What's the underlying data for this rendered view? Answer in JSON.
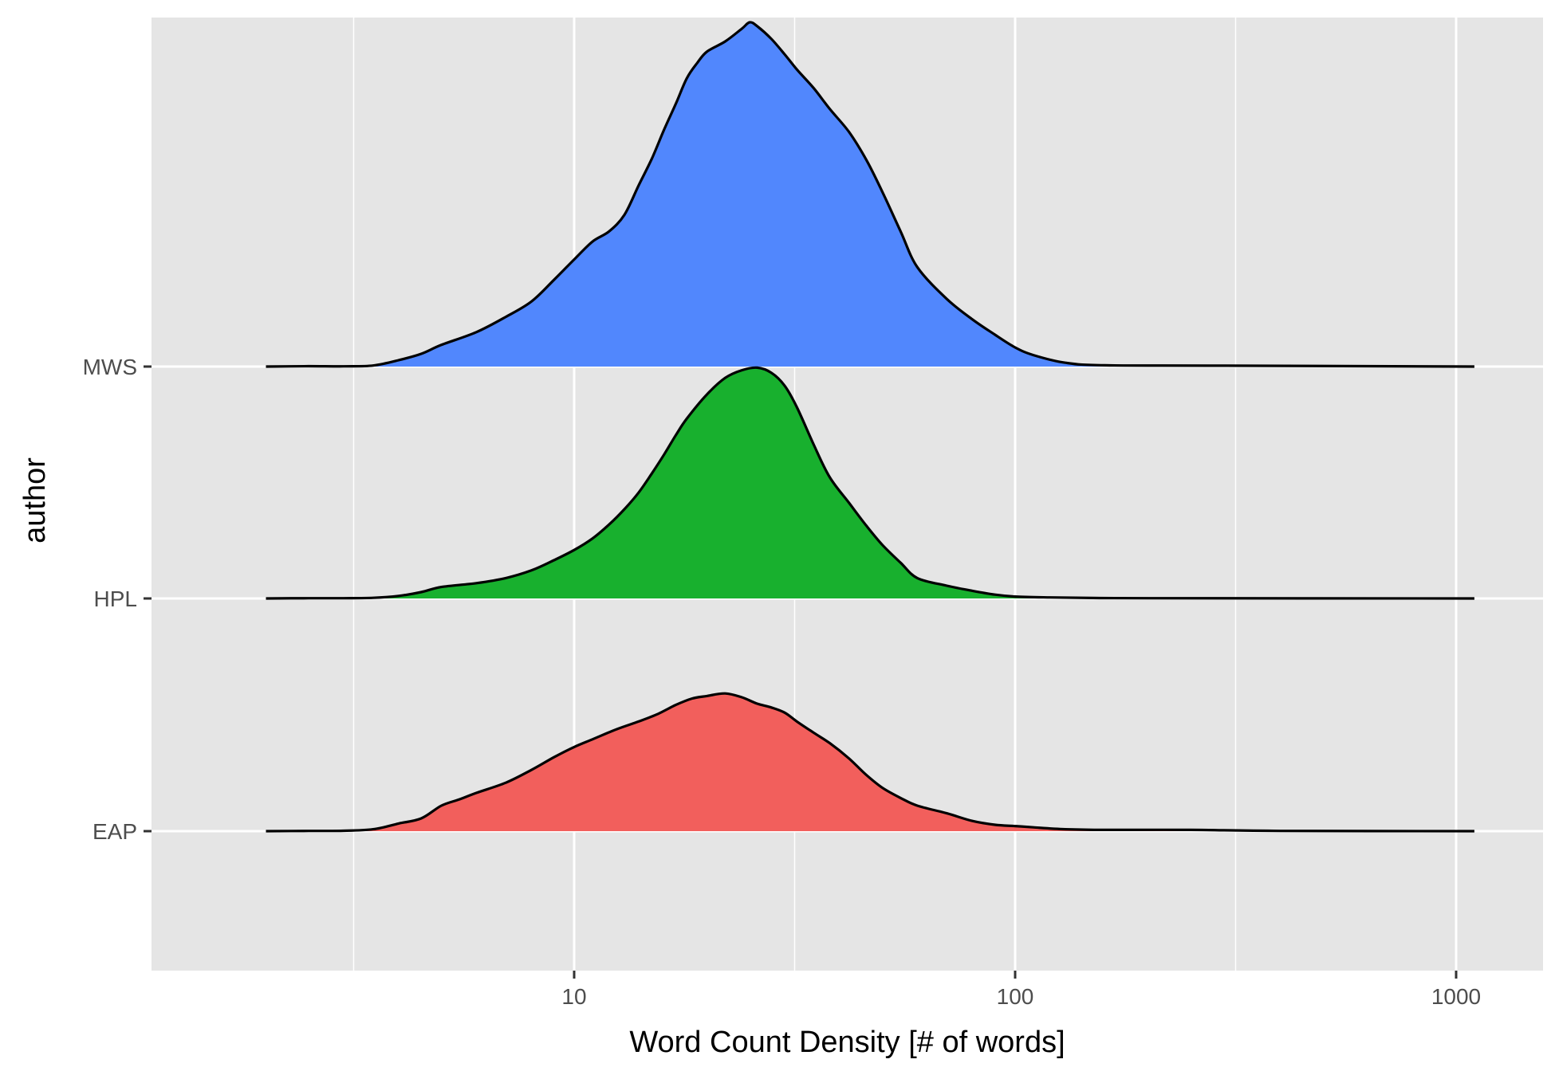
{
  "chart_data": {
    "type": "ridgeline",
    "title": "",
    "xlabel": "Word Count Density [# of words]",
    "ylabel": "author",
    "x_scale": "log10",
    "xlim": [
      1.6,
      1500
    ],
    "x_ticks": [
      10,
      100,
      1000
    ],
    "x_tick_labels": [
      "10",
      "100",
      "1000"
    ],
    "x_minor_gridlines": [
      3.162,
      31.62,
      316.2
    ],
    "categories": [
      "EAP",
      "HPL",
      "MWS"
    ],
    "grid": true,
    "legend": "none",
    "series": [
      {
        "name": "EAP",
        "color": "#F25F5C",
        "points": [
          [
            2,
            0
          ],
          [
            2.5,
            0.002
          ],
          [
            3,
            0.003
          ],
          [
            3.5,
            0.015
          ],
          [
            4,
            0.06
          ],
          [
            4.5,
            0.1
          ],
          [
            5,
            0.2
          ],
          [
            5.5,
            0.25
          ],
          [
            6,
            0.3
          ],
          [
            7,
            0.38
          ],
          [
            8,
            0.48
          ],
          [
            9,
            0.58
          ],
          [
            10,
            0.66
          ],
          [
            11,
            0.72
          ],
          [
            12.5,
            0.8
          ],
          [
            14,
            0.86
          ],
          [
            15.5,
            0.92
          ],
          [
            17,
            0.99
          ],
          [
            18.5,
            1.04
          ],
          [
            20,
            1.06
          ],
          [
            22,
            1.08
          ],
          [
            24,
            1.05
          ],
          [
            26,
            1.0
          ],
          [
            28,
            0.97
          ],
          [
            30,
            0.93
          ],
          [
            32,
            0.86
          ],
          [
            35,
            0.77
          ],
          [
            38,
            0.69
          ],
          [
            42,
            0.57
          ],
          [
            46,
            0.44
          ],
          [
            50,
            0.34
          ],
          [
            55,
            0.26
          ],
          [
            60,
            0.2
          ],
          [
            70,
            0.14
          ],
          [
            80,
            0.08
          ],
          [
            90,
            0.05
          ],
          [
            100,
            0.04
          ],
          [
            110,
            0.03
          ],
          [
            130,
            0.015
          ],
          [
            160,
            0.01
          ],
          [
            250,
            0.01
          ],
          [
            400,
            0.002
          ],
          [
            1100,
            0
          ]
        ]
      },
      {
        "name": "HPL",
        "color": "#18B02E",
        "points": [
          [
            2,
            0
          ],
          [
            2.5,
            0.002
          ],
          [
            3,
            0.002
          ],
          [
            3.5,
            0.005
          ],
          [
            4,
            0.02
          ],
          [
            4.5,
            0.05
          ],
          [
            5,
            0.09
          ],
          [
            6,
            0.12
          ],
          [
            7,
            0.16
          ],
          [
            8,
            0.22
          ],
          [
            9,
            0.3
          ],
          [
            10,
            0.38
          ],
          [
            11,
            0.47
          ],
          [
            12,
            0.58
          ],
          [
            13,
            0.7
          ],
          [
            14,
            0.83
          ],
          [
            15,
            0.98
          ],
          [
            16,
            1.13
          ],
          [
            17,
            1.28
          ],
          [
            18,
            1.41
          ],
          [
            20,
            1.6
          ],
          [
            22,
            1.73
          ],
          [
            24,
            1.79
          ],
          [
            26,
            1.81
          ],
          [
            28,
            1.77
          ],
          [
            30,
            1.67
          ],
          [
            32,
            1.5
          ],
          [
            35,
            1.2
          ],
          [
            38,
            0.95
          ],
          [
            42,
            0.75
          ],
          [
            46,
            0.57
          ],
          [
            50,
            0.42
          ],
          [
            55,
            0.28
          ],
          [
            60,
            0.16
          ],
          [
            70,
            0.1
          ],
          [
            80,
            0.06
          ],
          [
            90,
            0.03
          ],
          [
            100,
            0.015
          ],
          [
            120,
            0.008
          ],
          [
            150,
            0.004
          ],
          [
            200,
            0.002
          ],
          [
            1100,
            0
          ]
        ]
      },
      {
        "name": "MWS",
        "color": "#5187FD",
        "points": [
          [
            2,
            0
          ],
          [
            2.5,
            0.003
          ],
          [
            3,
            0.002
          ],
          [
            3.5,
            0.008
          ],
          [
            4,
            0.05
          ],
          [
            4.5,
            0.1
          ],
          [
            5,
            0.17
          ],
          [
            6,
            0.27
          ],
          [
            7,
            0.39
          ],
          [
            8,
            0.51
          ],
          [
            9,
            0.68
          ],
          [
            10,
            0.84
          ],
          [
            11,
            0.98
          ],
          [
            12,
            1.06
          ],
          [
            13,
            1.19
          ],
          [
            14,
            1.42
          ],
          [
            15,
            1.63
          ],
          [
            16,
            1.86
          ],
          [
            17,
            2.06
          ],
          [
            18,
            2.26
          ],
          [
            19,
            2.38
          ],
          [
            20,
            2.47
          ],
          [
            22,
            2.55
          ],
          [
            24,
            2.65
          ],
          [
            25,
            2.7
          ],
          [
            26,
            2.67
          ],
          [
            28,
            2.57
          ],
          [
            30,
            2.45
          ],
          [
            32,
            2.33
          ],
          [
            35,
            2.18
          ],
          [
            38,
            2.02
          ],
          [
            42,
            1.84
          ],
          [
            46,
            1.62
          ],
          [
            50,
            1.37
          ],
          [
            55,
            1.06
          ],
          [
            60,
            0.78
          ],
          [
            70,
            0.53
          ],
          [
            80,
            0.37
          ],
          [
            90,
            0.25
          ],
          [
            100,
            0.15
          ],
          [
            110,
            0.09
          ],
          [
            130,
            0.03
          ],
          [
            160,
            0.01
          ],
          [
            300,
            0.007
          ],
          [
            1100,
            0
          ]
        ]
      }
    ]
  }
}
